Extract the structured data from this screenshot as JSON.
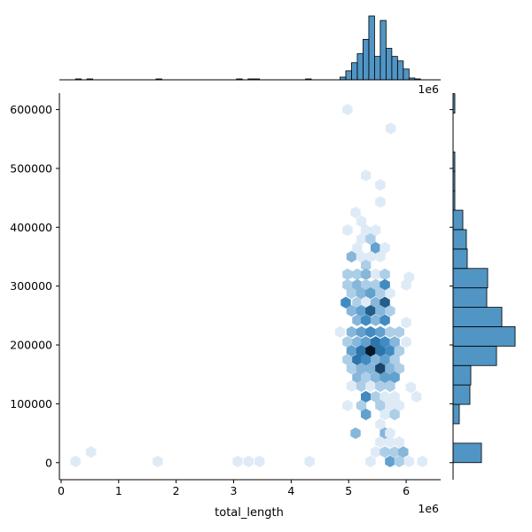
{
  "chart_data": {
    "type": "hexbin-joint",
    "title": "",
    "xlabel": "total_length",
    "ylabel": "",
    "x_offset_label": "1e6",
    "top_offset_label": "1e6",
    "xlim": [
      -0.03,
      6.6
    ],
    "ylim": [
      -29000,
      628000
    ],
    "x_ticks": [
      0,
      1,
      2,
      3,
      4,
      5,
      6
    ],
    "x_tick_labels": [
      "0",
      "1",
      "2",
      "3",
      "4",
      "5",
      "6"
    ],
    "y_ticks": [
      0,
      100000,
      200000,
      300000,
      400000,
      500000,
      600000
    ],
    "y_tick_labels": [
      "0",
      "100000",
      "200000",
      "300000",
      "400000",
      "500000",
      "600000"
    ],
    "color": "#1f77b4",
    "hexbin_cells": [
      [
        0.25,
        2000,
        1
      ],
      [
        0.52,
        18000,
        1
      ],
      [
        1.68,
        2000,
        1
      ],
      [
        3.07,
        2000,
        1
      ],
      [
        3.26,
        2000,
        1
      ],
      [
        3.45,
        2000,
        1
      ],
      [
        4.32,
        2000,
        1
      ],
      [
        4.98,
        600000,
        1
      ],
      [
        5.73,
        568000,
        1
      ],
      [
        5.3,
        488000,
        1
      ],
      [
        5.55,
        472000,
        1
      ],
      [
        5.55,
        443000,
        1
      ],
      [
        5.12,
        425000,
        1
      ],
      [
        5.22,
        410000,
        1
      ],
      [
        4.98,
        395000,
        1
      ],
      [
        5.3,
        395000,
        1
      ],
      [
        5.47,
        395000,
        1
      ],
      [
        5.22,
        380000,
        1
      ],
      [
        5.38,
        380000,
        2
      ],
      [
        5.15,
        365000,
        1
      ],
      [
        5.47,
        365000,
        4
      ],
      [
        5.63,
        365000,
        1
      ],
      [
        5.05,
        350000,
        3
      ],
      [
        5.22,
        350000,
        1
      ],
      [
        5.38,
        350000,
        1
      ],
      [
        5.55,
        350000,
        1
      ],
      [
        5.3,
        335000,
        2
      ],
      [
        4.98,
        320000,
        2
      ],
      [
        5.15,
        320000,
        2
      ],
      [
        5.3,
        320000,
        3
      ],
      [
        5.47,
        320000,
        1
      ],
      [
        5.63,
        320000,
        2
      ],
      [
        6.05,
        315000,
        1
      ],
      [
        4.98,
        302000,
        2
      ],
      [
        5.15,
        302000,
        3
      ],
      [
        5.3,
        302000,
        2
      ],
      [
        5.47,
        302000,
        2
      ],
      [
        5.63,
        302000,
        5
      ],
      [
        6.0,
        302000,
        1
      ],
      [
        5.05,
        288000,
        2
      ],
      [
        5.22,
        288000,
        3
      ],
      [
        5.38,
        288000,
        4
      ],
      [
        5.55,
        288000,
        2
      ],
      [
        5.72,
        288000,
        1
      ],
      [
        4.95,
        272000,
        5
      ],
      [
        5.15,
        272000,
        2
      ],
      [
        5.3,
        272000,
        1
      ],
      [
        5.47,
        272000,
        3
      ],
      [
        5.63,
        272000,
        7
      ],
      [
        5.05,
        258000,
        3
      ],
      [
        5.22,
        258000,
        4
      ],
      [
        5.38,
        258000,
        7
      ],
      [
        5.55,
        258000,
        3
      ],
      [
        5.72,
        258000,
        2
      ],
      [
        5.15,
        242000,
        3
      ],
      [
        5.3,
        242000,
        5
      ],
      [
        5.47,
        242000,
        3
      ],
      [
        5.63,
        242000,
        5
      ],
      [
        6.0,
        238000,
        1
      ],
      [
        4.85,
        222000,
        1
      ],
      [
        5.05,
        222000,
        3
      ],
      [
        5.22,
        222000,
        4
      ],
      [
        5.38,
        222000,
        5
      ],
      [
        5.55,
        222000,
        4
      ],
      [
        5.72,
        222000,
        2
      ],
      [
        5.88,
        222000,
        2
      ],
      [
        4.98,
        205000,
        2
      ],
      [
        5.15,
        205000,
        3
      ],
      [
        5.3,
        205000,
        4
      ],
      [
        5.47,
        205000,
        6
      ],
      [
        5.63,
        205000,
        5
      ],
      [
        5.8,
        205000,
        3
      ],
      [
        6.0,
        205000,
        1
      ],
      [
        5.05,
        190000,
        4
      ],
      [
        5.22,
        190000,
        6
      ],
      [
        5.38,
        190000,
        10
      ],
      [
        5.55,
        190000,
        6
      ],
      [
        5.72,
        190000,
        5
      ],
      [
        5.88,
        190000,
        2
      ],
      [
        4.98,
        175000,
        2
      ],
      [
        5.15,
        175000,
        6
      ],
      [
        5.3,
        175000,
        5
      ],
      [
        5.47,
        175000,
        3
      ],
      [
        5.63,
        175000,
        4
      ],
      [
        5.8,
        175000,
        2
      ],
      [
        5.05,
        160000,
        2
      ],
      [
        5.22,
        160000,
        3
      ],
      [
        5.38,
        160000,
        3
      ],
      [
        5.55,
        160000,
        8
      ],
      [
        5.72,
        160000,
        3
      ],
      [
        5.88,
        160000,
        2
      ],
      [
        5.15,
        145000,
        3
      ],
      [
        5.3,
        145000,
        2
      ],
      [
        5.47,
        145000,
        3
      ],
      [
        5.63,
        145000,
        4
      ],
      [
        5.8,
        145000,
        4
      ],
      [
        5.05,
        130000,
        1
      ],
      [
        5.22,
        130000,
        2
      ],
      [
        5.38,
        130000,
        1
      ],
      [
        5.55,
        130000,
        2
      ],
      [
        5.72,
        130000,
        2
      ],
      [
        6.08,
        128000,
        1
      ],
      [
        5.3,
        112000,
        5
      ],
      [
        5.47,
        112000,
        2
      ],
      [
        5.63,
        112000,
        1
      ],
      [
        5.8,
        112000,
        1
      ],
      [
        6.18,
        112000,
        1
      ],
      [
        4.98,
        97000,
        1
      ],
      [
        5.22,
        97000,
        2
      ],
      [
        5.55,
        97000,
        2
      ],
      [
        5.72,
        97000,
        1
      ],
      [
        5.88,
        97000,
        1
      ],
      [
        5.3,
        82000,
        4
      ],
      [
        5.63,
        82000,
        1
      ],
      [
        5.8,
        82000,
        2
      ],
      [
        5.55,
        65000,
        1
      ],
      [
        5.12,
        50000,
        3
      ],
      [
        5.63,
        50000,
        3
      ],
      [
        5.72,
        50000,
        1
      ],
      [
        5.55,
        35000,
        1
      ],
      [
        5.72,
        35000,
        1
      ],
      [
        5.88,
        35000,
        1
      ],
      [
        5.47,
        18000,
        1
      ],
      [
        5.63,
        18000,
        2
      ],
      [
        5.8,
        18000,
        2
      ],
      [
        5.95,
        18000,
        3
      ],
      [
        5.38,
        2000,
        1
      ],
      [
        5.72,
        2000,
        4
      ],
      [
        5.88,
        2000,
        2
      ],
      [
        6.05,
        2000,
        1
      ],
      [
        6.28,
        2000,
        1
      ]
    ],
    "top_histogram": {
      "bin_width": 0.1,
      "bins": [
        {
          "x": 0.3,
          "count": 1
        },
        {
          "x": 0.5,
          "count": 1
        },
        {
          "x": 1.7,
          "count": 1
        },
        {
          "x": 3.1,
          "count": 1
        },
        {
          "x": 3.3,
          "count": 1
        },
        {
          "x": 3.4,
          "count": 1
        },
        {
          "x": 4.3,
          "count": 1
        },
        {
          "x": 4.9,
          "count": 3
        },
        {
          "x": 5.0,
          "count": 10
        },
        {
          "x": 5.1,
          "count": 19
        },
        {
          "x": 5.2,
          "count": 29
        },
        {
          "x": 5.3,
          "count": 45
        },
        {
          "x": 5.4,
          "count": 71
        },
        {
          "x": 5.5,
          "count": 26
        },
        {
          "x": 5.6,
          "count": 66
        },
        {
          "x": 5.7,
          "count": 35
        },
        {
          "x": 5.8,
          "count": 26
        },
        {
          "x": 5.9,
          "count": 21
        },
        {
          "x": 6.0,
          "count": 12
        },
        {
          "x": 6.1,
          "count": 2
        },
        {
          "x": 6.2,
          "count": 1
        }
      ]
    },
    "right_histogram": {
      "bin_height": 33000,
      "bins": [
        {
          "y0": 0,
          "count": 32
        },
        {
          "y0": 66000,
          "count": 7
        },
        {
          "y0": 99000,
          "count": 19
        },
        {
          "y0": 132000,
          "count": 20
        },
        {
          "y0": 165000,
          "count": 49
        },
        {
          "y0": 198000,
          "count": 70
        },
        {
          "y0": 231000,
          "count": 55
        },
        {
          "y0": 264000,
          "count": 38
        },
        {
          "y0": 297000,
          "count": 39
        },
        {
          "y0": 330000,
          "count": 16
        },
        {
          "y0": 363000,
          "count": 15
        },
        {
          "y0": 396000,
          "count": 11
        },
        {
          "y0": 429000,
          "count": 2
        },
        {
          "y0": 462000,
          "count": 2
        },
        {
          "y0": 495000,
          "count": 2
        },
        {
          "y0": 594000,
          "count": 2
        }
      ]
    }
  }
}
